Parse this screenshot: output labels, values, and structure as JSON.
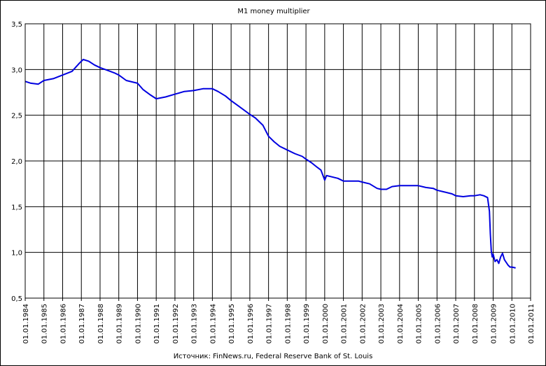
{
  "chart_data": {
    "type": "line",
    "title": "M1 money multiplier",
    "xlabel": "",
    "ylabel": "",
    "source": "Источник: FinNews.ru, Federal Reserve Bank of St. Louis",
    "ylim": [
      0.5,
      3.5
    ],
    "xlim": [
      1984,
      2011
    ],
    "grid": true,
    "y_ticks": [
      "0,5",
      "1,0",
      "1,5",
      "2,0",
      "2,5",
      "3,0",
      "3,5"
    ],
    "x_tick_labels": [
      "01.01.1984",
      "01.01.1985",
      "01.01.1986",
      "01.01.1987",
      "01.01.1988",
      "01.01.1989",
      "01.01.1990",
      "01.01.1991",
      "01.01.1992",
      "01.01.1993",
      "01.01.1994",
      "01.01.1995",
      "01.01.1996",
      "01.01.1997",
      "01.01.1998",
      "01.01.1999",
      "01.01.2000",
      "01.01.2001",
      "01.01.2002",
      "01.01.2003",
      "01.01.2004",
      "01.01.2005",
      "01.01.2006",
      "01.01.2007",
      "01.01.2008",
      "01.01.2009",
      "01.01.2010",
      "01.01.2011"
    ],
    "series": [
      {
        "color": "#0000e0",
        "x": [
          1984.0,
          1984.3,
          1984.7,
          1985.0,
          1985.5,
          1986.0,
          1986.5,
          1986.9,
          1987.1,
          1987.4,
          1987.7,
          1988.0,
          1988.4,
          1988.8,
          1989.0,
          1989.4,
          1989.8,
          1990.0,
          1990.3,
          1990.7,
          1991.0,
          1991.5,
          1992.0,
          1992.5,
          1993.0,
          1993.5,
          1994.0,
          1994.3,
          1994.7,
          1995.0,
          1995.4,
          1995.8,
          1996.0,
          1996.3,
          1996.7,
          1997.0,
          1997.3,
          1997.6,
          1998.0,
          1998.4,
          1998.8,
          1999.0,
          1999.3,
          1999.6,
          1999.8,
          2000.0,
          2000.1,
          2000.3,
          2000.7,
          2001.0,
          2001.4,
          2001.8,
          2002.0,
          2002.4,
          2002.8,
          2003.0,
          2003.3,
          2003.6,
          2004.0,
          2004.4,
          2004.8,
          2005.0,
          2005.4,
          2005.8,
          2006.0,
          2006.4,
          2006.8,
          2007.0,
          2007.4,
          2007.8,
          2008.0,
          2008.3,
          2008.5,
          2008.7,
          2008.8,
          2008.85,
          2008.9,
          2008.95,
          2009.0,
          2009.1,
          2009.2,
          2009.3,
          2009.4,
          2009.5,
          2009.6,
          2009.7,
          2009.8,
          2009.9,
          2010.0,
          2010.2
        ],
        "y": [
          2.87,
          2.85,
          2.84,
          2.88,
          2.9,
          2.94,
          2.98,
          3.07,
          3.11,
          3.09,
          3.05,
          3.02,
          2.99,
          2.96,
          2.94,
          2.88,
          2.86,
          2.85,
          2.78,
          2.72,
          2.68,
          2.7,
          2.73,
          2.76,
          2.77,
          2.79,
          2.79,
          2.76,
          2.71,
          2.66,
          2.6,
          2.54,
          2.51,
          2.47,
          2.39,
          2.27,
          2.21,
          2.16,
          2.12,
          2.08,
          2.05,
          2.02,
          1.98,
          1.93,
          1.9,
          1.79,
          1.84,
          1.83,
          1.81,
          1.78,
          1.78,
          1.78,
          1.77,
          1.75,
          1.7,
          1.69,
          1.69,
          1.72,
          1.73,
          1.73,
          1.73,
          1.73,
          1.71,
          1.7,
          1.68,
          1.66,
          1.64,
          1.62,
          1.61,
          1.62,
          1.62,
          1.63,
          1.62,
          1.6,
          1.45,
          1.2,
          1.02,
          0.95,
          0.98,
          0.9,
          0.92,
          0.88,
          0.95,
          0.99,
          0.92,
          0.89,
          0.86,
          0.84,
          0.84,
          0.83
        ]
      }
    ]
  }
}
